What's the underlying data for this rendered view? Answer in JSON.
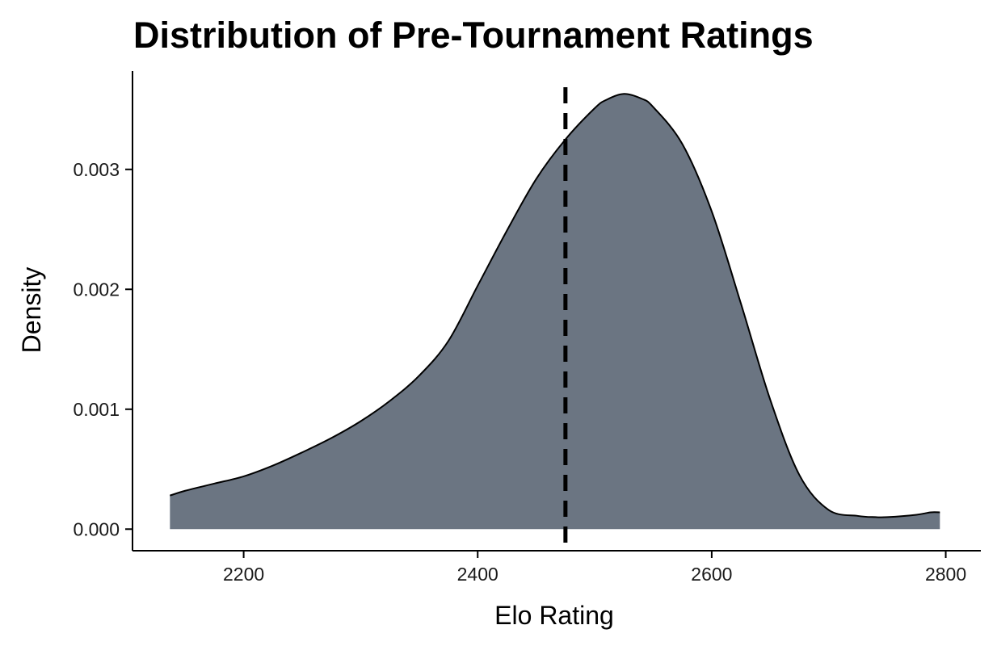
{
  "chart_data": {
    "type": "area",
    "title": "Distribution of Pre-Tournament Ratings",
    "xlabel": "Elo Rating",
    "ylabel": "Density",
    "xlim": [
      2105,
      2830
    ],
    "ylim": [
      -0.00018,
      0.00382
    ],
    "x_ticks": [
      {
        "value": 2200,
        "label": "2200"
      },
      {
        "value": 2400,
        "label": "2400"
      },
      {
        "value": 2600,
        "label": "2600"
      },
      {
        "value": 2800,
        "label": "2800"
      }
    ],
    "y_ticks": [
      {
        "value": 0.0,
        "label": "0.000"
      },
      {
        "value": 0.001,
        "label": "0.001"
      },
      {
        "value": 0.002,
        "label": "0.002"
      },
      {
        "value": 0.003,
        "label": "0.003"
      }
    ],
    "grid": false,
    "legend": "none",
    "series": [
      {
        "x": [
          2137,
          2150,
          2175,
          2200,
          2225,
          2250,
          2275,
          2300,
          2325,
          2350,
          2375,
          2400,
          2425,
          2450,
          2475,
          2500,
          2510,
          2525,
          2540,
          2550,
          2575,
          2600,
          2625,
          2650,
          2675,
          2700,
          2725,
          2740,
          2750,
          2775,
          2787,
          2795
        ],
        "y": [
          0.00028,
          0.00032,
          0.00038,
          0.00044,
          0.00053,
          0.00064,
          0.00076,
          0.0009,
          0.00107,
          0.00128,
          0.00157,
          0.00203,
          0.00249,
          0.00292,
          0.00325,
          0.00351,
          0.00358,
          0.00363,
          0.00359,
          0.00352,
          0.00321,
          0.00265,
          0.00188,
          0.00108,
          0.00045,
          0.00016,
          0.00011,
          0.0001,
          0.0001,
          0.00012,
          0.00014,
          0.00014
        ]
      }
    ],
    "vline": {
      "x": 2475,
      "style": "dashed"
    },
    "colors": {
      "fill": "#6b7582",
      "outline": "#000000",
      "vline": "#000000",
      "axis": "#000000",
      "tick_text": "#1a1a1a"
    }
  }
}
